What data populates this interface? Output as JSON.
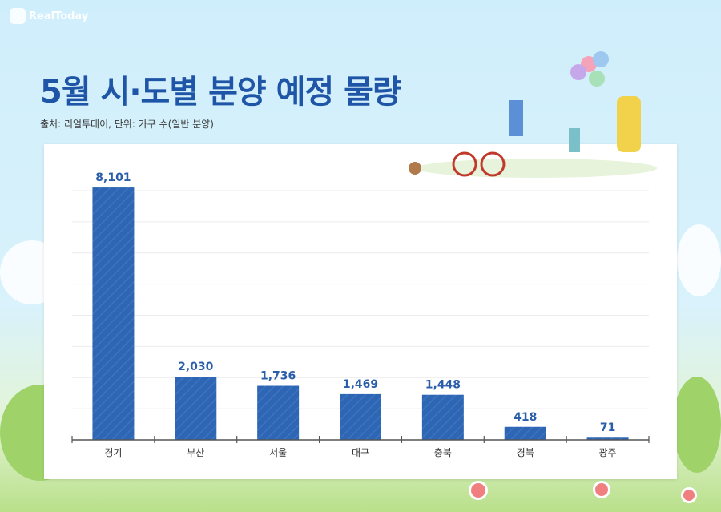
{
  "brand": "RealToday",
  "title": "5월 시·도별 분양 예정 물량",
  "subtitle": "출처: 리얼투데이, 단위: 가구 수(일반 분양)",
  "colors": {
    "bar": "#2e66b3",
    "title": "#1f55a6",
    "value": "#2a5ea8"
  },
  "chart_data": {
    "type": "bar",
    "title": "5월 시·도별 분양 예정 물량",
    "categories": [
      "경기",
      "부산",
      "서울",
      "대구",
      "충북",
      "경북",
      "광주"
    ],
    "values": [
      8101,
      2030,
      1736,
      1469,
      1448,
      418,
      71
    ],
    "value_labels": [
      "8,101",
      "2,030",
      "1,736",
      "1,469",
      "1,448",
      "418",
      "71"
    ],
    "ylim": [
      0,
      8000
    ],
    "grid": true,
    "xlabel": "",
    "ylabel": ""
  }
}
